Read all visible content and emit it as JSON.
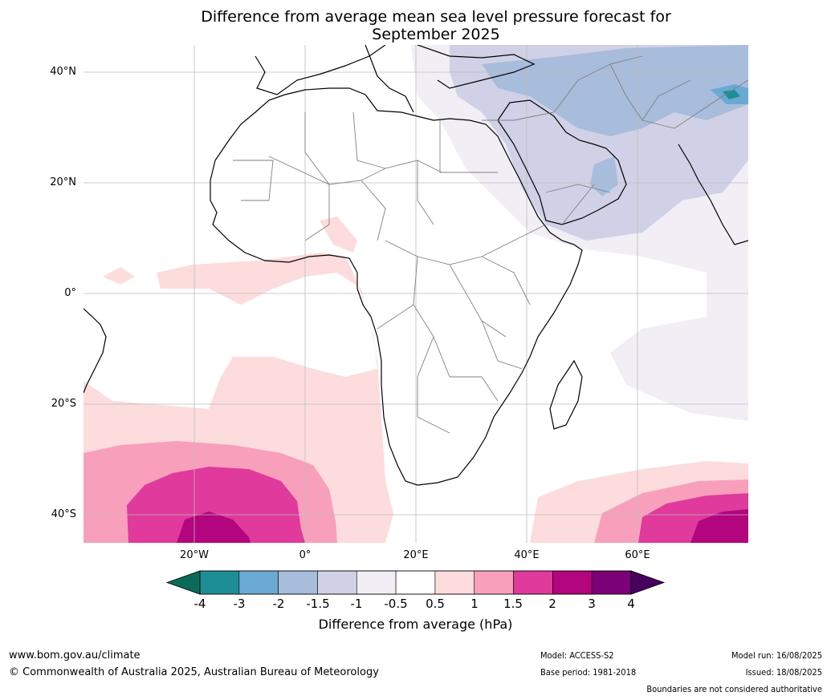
{
  "title": {
    "line1": "Difference from average mean sea level pressure forecast for",
    "line2": "September 2025"
  },
  "map": {
    "lat_labels": [
      "40°N",
      "20°N",
      "0°",
      "20°S",
      "40°S"
    ],
    "lon_labels": [
      "20°W",
      "0°",
      "20°E",
      "40°E",
      "60°E"
    ],
    "extent": {
      "lon_min": -40,
      "lon_max": 80,
      "lat_min": -45,
      "lat_max": 45
    }
  },
  "colorbar": {
    "ticks": [
      "-4",
      "-3",
      "-2",
      "-1.5",
      "-1",
      "-0.5",
      "0.5",
      "1",
      "1.5",
      "2",
      "3",
      "4"
    ],
    "colors": [
      "#1d8e96",
      "#6aa9d1",
      "#a8bcdb",
      "#d0d1e6",
      "#f1eef5",
      "#ffffff",
      "#fcdcdc",
      "#f8a0bb",
      "#df3a9c",
      "#b2057e",
      "#7a0177"
    ],
    "under_color": "#0b6b5a",
    "over_color": "#48005f",
    "label": "Difference from average (hPa)"
  },
  "footer": {
    "website": "www.bom.gov.au/climate",
    "copyright": "© Commonwealth of Australia 2025, Australian Bureau of Meteorology",
    "model": "Model: ACCESS-S2",
    "base_period": "Base period: 1981-2018",
    "model_run": "Model run: 16/08/2025",
    "issued": "Issued: 18/08/2025",
    "disclaimer": "Boundaries are not considered authoritative"
  }
}
